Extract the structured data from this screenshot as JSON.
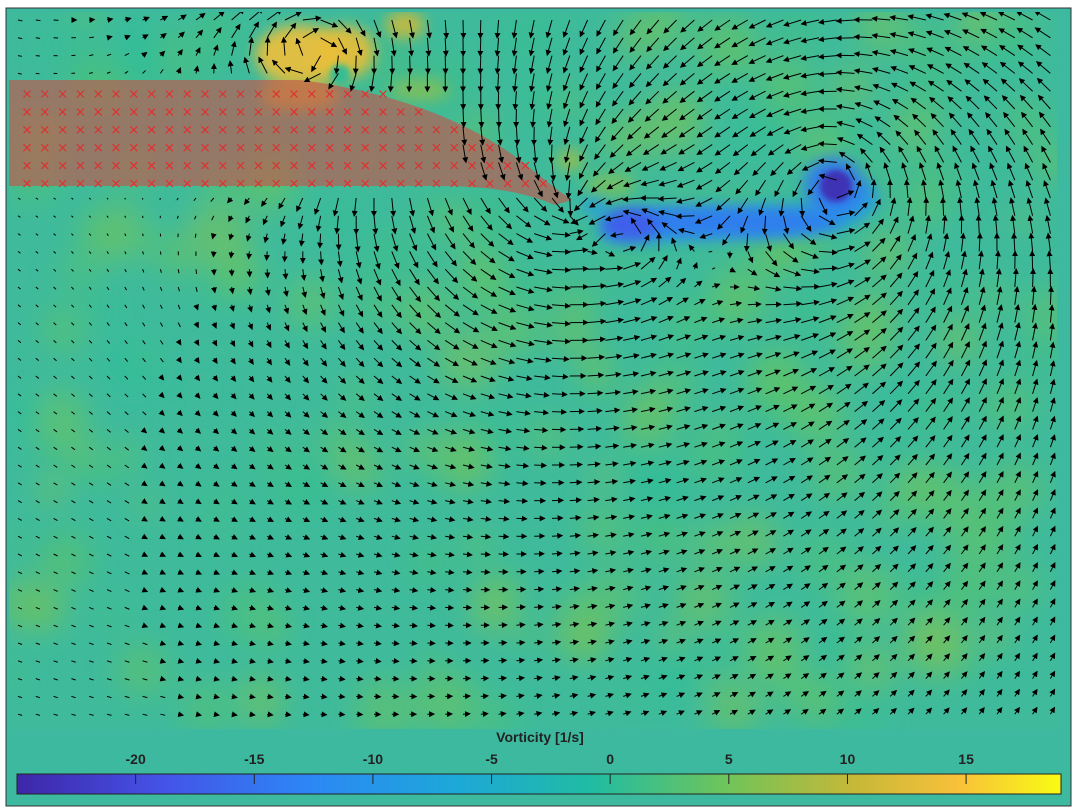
{
  "chart_data": {
    "type": "heatmap",
    "title": "",
    "xlabel": "",
    "ylabel": "",
    "grid": false,
    "legend": "none",
    "colorbar": {
      "label": "Vorticity [1/s]",
      "ticks": [
        -20,
        -15,
        -10,
        -5,
        0,
        5,
        10,
        15
      ],
      "tick_labels": [
        "-20",
        "-15",
        "-10",
        "-5",
        "0",
        "5",
        "10",
        "15"
      ],
      "range": [
        -25,
        19
      ],
      "placement": "bottom",
      "colormap": "parula"
    },
    "background_value": 3,
    "overlays": {
      "quiver": "black velocity arrows on a regular grid",
      "mask": "semi-transparent red region with red x markers (foil / blade)",
      "mask_color": "#c8504a",
      "marker_color": "#e03030"
    },
    "vortices": [
      {
        "name": "leading-edge vortex",
        "value": -24,
        "sign": "negative"
      },
      {
        "name": "shear layer",
        "value": -18,
        "sign": "negative"
      },
      {
        "name": "upper vortex pair",
        "value": 14,
        "sign": "positive"
      }
    ]
  }
}
